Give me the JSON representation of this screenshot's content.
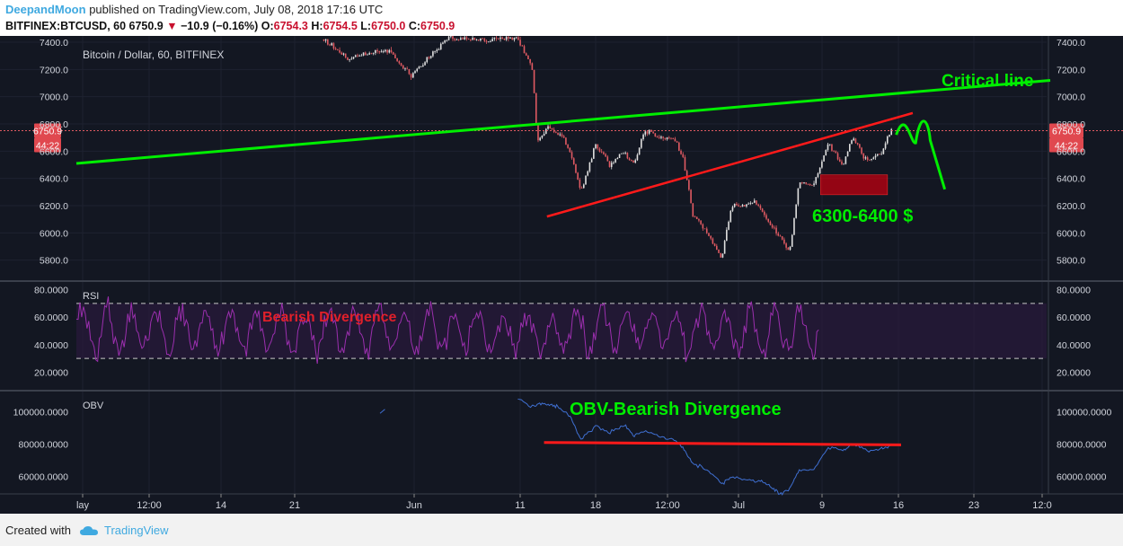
{
  "header": {
    "author": "DeepandMoon",
    "published_text": "published on TradingView.com, July 08, 2018 17:16 UTC",
    "symbol": "BITFINEX:BTCUSD, 60",
    "price": "6750.9",
    "change": "−10.9 (−0.16%)",
    "o_label": "O:",
    "o_value": "6754.3",
    "h_label": "H:",
    "h_value": "6754.5",
    "l_label": "L:",
    "l_value": "6750.0",
    "c_label": "C:",
    "c_value": "6750.9"
  },
  "footer": {
    "created_with": "Created with",
    "brand": "TradingView"
  },
  "colors": {
    "background": "#131722",
    "candle_up": "#e0e0e0",
    "candle_down": "#e05a62",
    "rsi": "#9b2fae",
    "obv": "#3f6fd1",
    "green_line": "#00ee00",
    "red_line": "#ff1a1a"
  },
  "chart_data": [
    {
      "type": "candlestick",
      "title": "Bitcoin / Dollar, 60, BITFINEX",
      "y_ticks": [
        "7400.0",
        "7200.0",
        "7000.0",
        "6800.0",
        "6600.0",
        "6400.0",
        "6200.0",
        "6000.0",
        "5800.0"
      ],
      "ylim": [
        5680,
        7430
      ],
      "x_ticks": [
        "lay",
        "12:00",
        "14",
        "21",
        "Jun",
        "11",
        "18",
        "12:00",
        "Jul",
        "9",
        "16",
        "23",
        "12:0"
      ],
      "price_label": "6750.9",
      "countdown": "44:22",
      "anchors": [
        {
          "t": 0,
          "p": null
        },
        {
          "t": 0.255,
          "p": 7420
        },
        {
          "t": 0.28,
          "p": 7280
        },
        {
          "t": 0.32,
          "p": 7350
        },
        {
          "t": 0.345,
          "p": 7150
        },
        {
          "t": 0.365,
          "p": 7300
        },
        {
          "t": 0.385,
          "p": 7440
        },
        {
          "t": 0.4,
          "p": 7420
        },
        {
          "t": 0.435,
          "p": 7420
        },
        {
          "t": 0.455,
          "p": 7430
        },
        {
          "t": 0.47,
          "p": 7200
        },
        {
          "t": 0.475,
          "p": 6680
        },
        {
          "t": 0.485,
          "p": 6780
        },
        {
          "t": 0.5,
          "p": 6720
        },
        {
          "t": 0.51,
          "p": 6560
        },
        {
          "t": 0.52,
          "p": 6300
        },
        {
          "t": 0.535,
          "p": 6650
        },
        {
          "t": 0.55,
          "p": 6500
        },
        {
          "t": 0.565,
          "p": 6600
        },
        {
          "t": 0.575,
          "p": 6500
        },
        {
          "t": 0.585,
          "p": 6750
        },
        {
          "t": 0.6,
          "p": 6700
        },
        {
          "t": 0.615,
          "p": 6700
        },
        {
          "t": 0.625,
          "p": 6560
        },
        {
          "t": 0.635,
          "p": 6150
        },
        {
          "t": 0.65,
          "p": 6000
        },
        {
          "t": 0.665,
          "p": 5820
        },
        {
          "t": 0.675,
          "p": 6200
        },
        {
          "t": 0.685,
          "p": 6200
        },
        {
          "t": 0.7,
          "p": 6230
        },
        {
          "t": 0.715,
          "p": 6050
        },
        {
          "t": 0.725,
          "p": 5980
        },
        {
          "t": 0.735,
          "p": 5860
        },
        {
          "t": 0.745,
          "p": 6380
        },
        {
          "t": 0.76,
          "p": 6350
        },
        {
          "t": 0.775,
          "p": 6650
        },
        {
          "t": 0.79,
          "p": 6500
        },
        {
          "t": 0.8,
          "p": 6700
        },
        {
          "t": 0.815,
          "p": 6530
        },
        {
          "t": 0.83,
          "p": 6600
        },
        {
          "t": 0.84,
          "p": 6760
        }
      ],
      "annotations": [
        {
          "text": "Critical line",
          "color": "#00ee00"
        },
        {
          "text": "6300-6400 $",
          "color": "#00ee00"
        }
      ]
    },
    {
      "type": "line",
      "title": "RSI",
      "y_ticks": [
        "80.0000",
        "60.0000",
        "40.0000",
        "20.0000"
      ],
      "ylim": [
        10,
        85
      ],
      "bands": [
        30,
        70
      ],
      "annotation": "Bearish Divergence"
    },
    {
      "type": "line",
      "title": "OBV",
      "y_ticks": [
        "100000.0000",
        "80000.0000",
        "60000.0000"
      ],
      "ylim": [
        47000,
        115000
      ],
      "annotation": "OBV-Bearish  Divergence"
    }
  ]
}
